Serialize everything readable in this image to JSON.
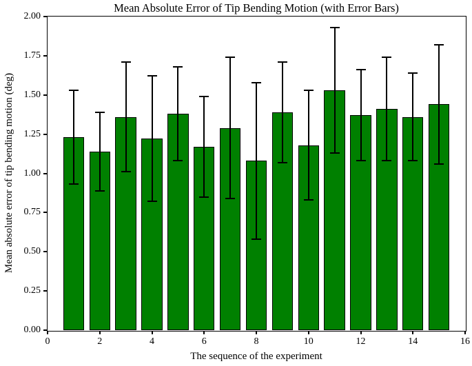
{
  "chart_data": {
    "type": "bar",
    "title": "Mean Absolute Error of Tip Bending Motion (with Error Bars)",
    "xlabel": "The sequence of the experiment",
    "ylabel": "Mean absolute error of tip bending motion (deg)",
    "x": [
      1,
      2,
      3,
      4,
      5,
      6,
      7,
      8,
      9,
      10,
      11,
      12,
      13,
      14,
      15
    ],
    "values": [
      1.23,
      1.14,
      1.36,
      1.22,
      1.38,
      1.17,
      1.29,
      1.08,
      1.39,
      1.18,
      1.53,
      1.37,
      1.41,
      1.36,
      1.44
    ],
    "error": [
      0.3,
      0.25,
      0.35,
      0.4,
      0.3,
      0.32,
      0.45,
      0.5,
      0.32,
      0.35,
      0.4,
      0.29,
      0.33,
      0.28,
      0.38
    ],
    "xlim": [
      0,
      16
    ],
    "ylim": [
      0.0,
      2.0
    ],
    "xticks": {
      "values": [
        0,
        2,
        4,
        6,
        8,
        10,
        12,
        14,
        16
      ],
      "labels": [
        "0",
        "2",
        "4",
        "6",
        "8",
        "10",
        "12",
        "14",
        "16"
      ]
    },
    "yticks": {
      "values": [
        0.0,
        0.25,
        0.5,
        0.75,
        1.0,
        1.25,
        1.5,
        1.75,
        2.0
      ],
      "labels": [
        "0.00",
        "0.25",
        "0.50",
        "0.75",
        "1.00",
        "1.25",
        "1.50",
        "1.75",
        "2.00"
      ]
    },
    "bar_width": 0.8,
    "bar_color": "#008000",
    "bar_edge_color": "#000000",
    "error_color": "#000000",
    "grid": false,
    "legend": null
  }
}
